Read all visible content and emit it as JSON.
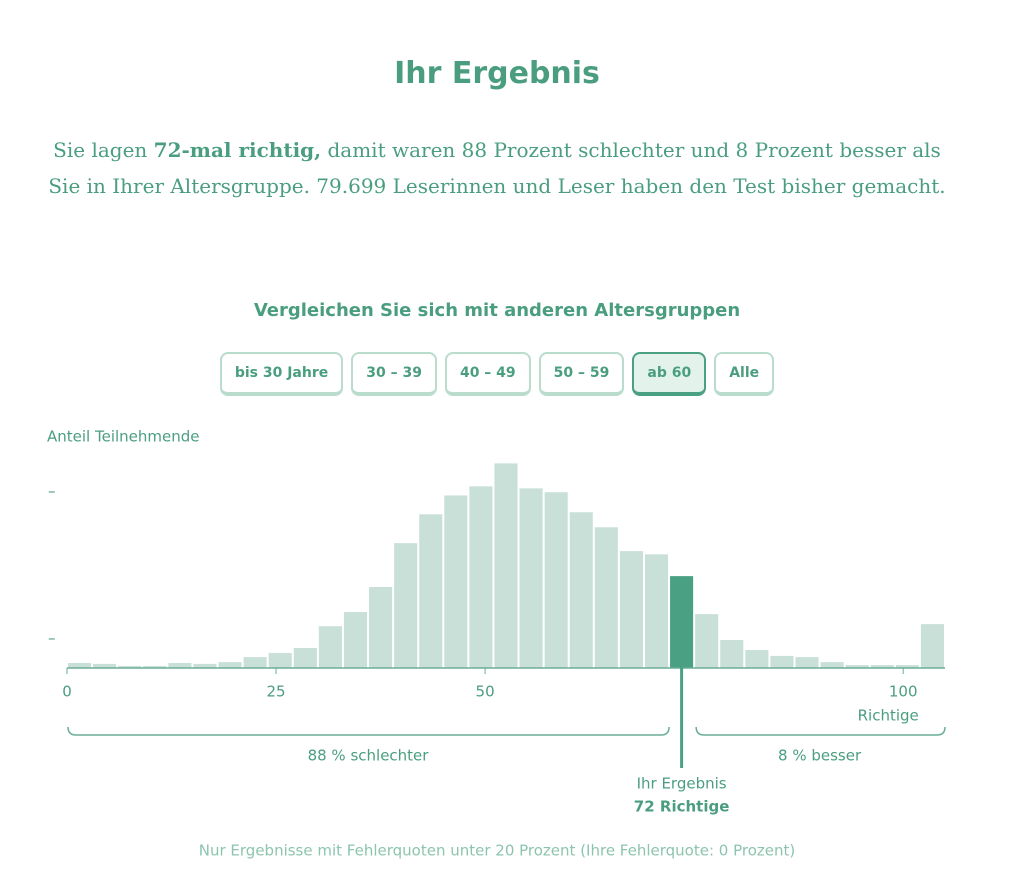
{
  "header": {
    "title": "Ihr Ergebnis"
  },
  "intro": {
    "before": "Sie lagen ",
    "bold": "72-mal richtig,",
    "after": " damit waren 88 Prozent schlechter und 8 Prozent besser als Sie in Ihrer Altersgruppe. 79.699 Leserinnen und Leser haben den Test bisher gemacht."
  },
  "compare": {
    "title": "Vergleichen Sie sich mit anderen Altersgruppen",
    "buttons": [
      "bis 30 Jahre",
      "30 – 39",
      "40 – 49",
      "50 – 59",
      "ab 60",
      "Alle"
    ],
    "active": 4
  },
  "chart_data": {
    "type": "histogram",
    "y_label": "Anteil Teilnehmende",
    "x_label": "Richtige",
    "bins": [
      0,
      3,
      6,
      9,
      12,
      15,
      18,
      21,
      24,
      27,
      30,
      33,
      36,
      39,
      42,
      45,
      48,
      51,
      54,
      57,
      60,
      63,
      66,
      69,
      72,
      75,
      78,
      81,
      84,
      87,
      90,
      93,
      96,
      99,
      102,
      105
    ],
    "values": [
      0.17,
      0.14,
      0.07,
      0.07,
      0.17,
      0.14,
      0.2,
      0.37,
      0.51,
      0.68,
      1.42,
      1.9,
      2.75,
      4.24,
      5.22,
      5.86,
      6.17,
      6.95,
      6.1,
      5.97,
      5.29,
      4.78,
      3.97,
      3.86,
      3.12,
      1.83,
      0.95,
      0.61,
      0.41,
      0.37,
      0.2,
      0.1,
      0.1,
      0.1,
      1.49
    ],
    "color": "#c8e0d7",
    "highlight_color": "#4aa083",
    "xlim": [
      0,
      105
    ],
    "xticks": [
      0,
      25,
      50,
      100
    ],
    "ylim": [
      0,
      7.2
    ],
    "yticks": [
      {
        "value": 1,
        "label": "–"
      },
      {
        "value": 6,
        "label": "–"
      }
    ],
    "marker": {
      "value": 72,
      "label": "Ihr Ergebnis",
      "sublabel": "72 Richtige"
    },
    "worse_label": "88 % schlechter",
    "better_label": "8 % besser"
  },
  "footer": {
    "note": "Nur Ergebnisse mit Fehlerquoten unter 20 Prozent (Ihre Fehlerquote: 0 Prozent)"
  }
}
